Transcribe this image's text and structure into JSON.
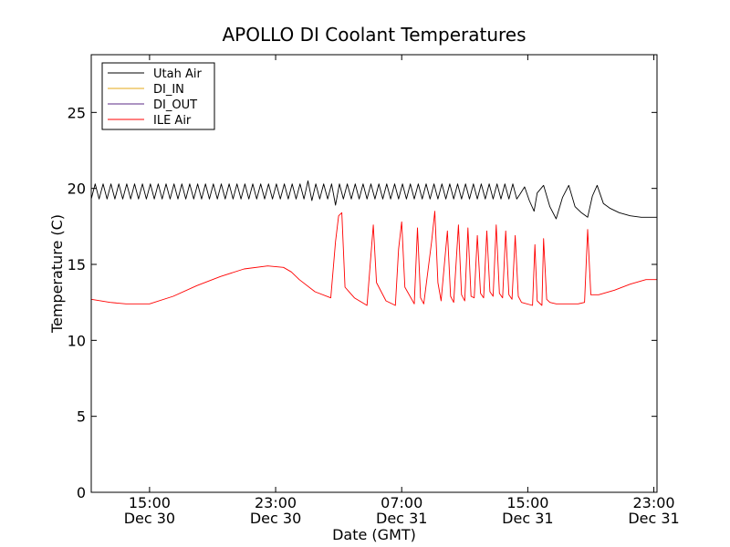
{
  "chart_data": {
    "type": "line",
    "title": "APOLLO DI Coolant Temperatures",
    "xlabel": "Date (GMT)",
    "ylabel": "Temperature (C)",
    "x_unit": "hours since Dec 30 00:00 GMT",
    "xlim": [
      11.3,
      47.2
    ],
    "ylim": [
      0,
      28.8
    ],
    "yticks": [
      0,
      5,
      10,
      15,
      20,
      25
    ],
    "xticks": [
      {
        "x": 15,
        "time": "15:00",
        "date": "Dec 30"
      },
      {
        "x": 23,
        "time": "23:00",
        "date": "Dec 30"
      },
      {
        "x": 31,
        "time": "07:00",
        "date": "Dec 31"
      },
      {
        "x": 39,
        "time": "15:00",
        "date": "Dec 31"
      },
      {
        "x": 47,
        "time": "23:00",
        "date": "Dec 31"
      }
    ],
    "legend_position": "top-left",
    "series": [
      {
        "name": "Utah Air",
        "color": "#000000",
        "x": [
          11.3,
          11.55,
          11.8,
          12.05,
          12.3,
          12.55,
          12.8,
          13.05,
          13.3,
          13.55,
          13.8,
          14.05,
          14.3,
          14.55,
          14.8,
          15.05,
          15.3,
          15.55,
          15.8,
          16.05,
          16.3,
          16.55,
          16.8,
          17.05,
          17.3,
          17.55,
          17.8,
          18.05,
          18.3,
          18.55,
          18.8,
          19.05,
          19.3,
          19.55,
          19.8,
          20.05,
          20.3,
          20.55,
          20.8,
          21.05,
          21.3,
          21.55,
          21.8,
          22.05,
          22.3,
          22.55,
          22.8,
          23.05,
          23.3,
          23.55,
          23.8,
          24.05,
          24.3,
          24.55,
          24.8,
          25.05,
          25.3,
          25.55,
          25.8,
          26.05,
          26.3,
          26.55,
          26.8,
          27.05,
          27.3,
          27.55,
          27.8,
          28.05,
          28.3,
          28.55,
          28.8,
          29.05,
          29.3,
          29.55,
          29.8,
          30.05,
          30.3,
          30.55,
          30.8,
          31.05,
          31.3,
          31.55,
          31.8,
          32.05,
          32.3,
          32.55,
          32.8,
          33.05,
          33.3,
          33.55,
          33.8,
          34.05,
          34.3,
          34.55,
          34.8,
          35.05,
          35.3,
          35.55,
          35.8,
          36.05,
          36.3,
          36.55,
          36.8,
          37.05,
          37.3,
          37.55,
          37.8,
          38.05,
          38.3,
          38.5,
          38.8,
          39.1,
          39.4,
          39.6,
          40.0,
          40.4,
          40.8,
          41.2,
          41.6,
          42.0,
          42.4,
          42.8,
          43.1,
          43.4,
          43.8,
          44.2,
          44.8,
          45.5,
          46.2,
          46.6,
          47.2
        ],
        "y": [
          19.3,
          20.3,
          19.3,
          20.3,
          19.3,
          20.3,
          19.3,
          20.3,
          19.3,
          20.3,
          19.3,
          20.3,
          19.3,
          20.3,
          19.3,
          20.3,
          19.3,
          20.3,
          19.3,
          20.3,
          19.3,
          20.3,
          19.3,
          20.3,
          19.3,
          20.3,
          19.3,
          20.3,
          19.3,
          20.3,
          19.3,
          20.3,
          19.3,
          20.3,
          19.3,
          20.3,
          19.3,
          20.3,
          19.3,
          20.3,
          19.3,
          20.3,
          19.3,
          20.3,
          19.3,
          20.3,
          19.3,
          20.3,
          19.3,
          20.3,
          19.3,
          20.3,
          19.3,
          20.3,
          19.3,
          20.5,
          19.2,
          20.3,
          19.3,
          20.3,
          19.3,
          20.3,
          18.9,
          20.3,
          19.3,
          20.3,
          19.3,
          20.3,
          19.3,
          20.3,
          19.3,
          20.3,
          19.3,
          20.3,
          19.3,
          20.3,
          19.3,
          20.3,
          19.3,
          20.3,
          19.3,
          20.3,
          19.3,
          20.3,
          19.3,
          20.3,
          19.3,
          20.3,
          19.3,
          20.3,
          19.3,
          20.3,
          19.3,
          20.3,
          19.3,
          20.3,
          19.3,
          20.3,
          19.3,
          20.3,
          19.3,
          20.3,
          19.3,
          20.3,
          19.3,
          20.3,
          19.3,
          20.3,
          19.3,
          19.6,
          20.1,
          19.2,
          18.5,
          19.7,
          20.2,
          18.8,
          18.0,
          19.4,
          20.2,
          18.8,
          18.4,
          18.1,
          19.5,
          20.2,
          19.0,
          18.7,
          18.4,
          18.2,
          18.1,
          18.1,
          18.1
        ]
      },
      {
        "name": "DI_IN",
        "color": "#e6a817",
        "x": [],
        "y": []
      },
      {
        "name": "DI_OUT",
        "color": "#5b2a86",
        "x": [],
        "y": []
      },
      {
        "name": "ILE Air",
        "color": "#ff0000",
        "x": [
          11.3,
          12.5,
          13.5,
          15.0,
          16.5,
          18.0,
          19.5,
          21.0,
          22.5,
          23.5,
          24.0,
          24.5,
          25.5,
          26.5,
          26.8,
          27.0,
          27.2,
          27.4,
          28.0,
          28.8,
          29.0,
          29.2,
          29.4,
          30.0,
          30.6,
          30.8,
          31.0,
          31.2,
          31.8,
          32.0,
          32.2,
          32.4,
          32.9,
          33.1,
          33.3,
          33.5,
          33.9,
          34.1,
          34.3,
          34.6,
          34.8,
          35.0,
          35.2,
          35.4,
          35.6,
          35.8,
          36.0,
          36.2,
          36.4,
          36.6,
          36.8,
          37.0,
          37.2,
          37.4,
          37.6,
          37.8,
          38.0,
          38.2,
          38.4,
          38.6,
          39.3,
          39.45,
          39.6,
          39.9,
          40.0,
          40.2,
          40.4,
          40.8,
          41.5,
          42.2,
          42.6,
          42.8,
          43.0,
          43.5,
          44.5,
          45.5,
          46.5,
          47.2
        ],
        "y": [
          12.7,
          12.5,
          12.4,
          12.4,
          12.9,
          13.6,
          14.2,
          14.7,
          14.9,
          14.8,
          14.5,
          14.0,
          13.2,
          12.8,
          16.5,
          18.2,
          18.4,
          13.5,
          12.8,
          12.3,
          15.0,
          17.6,
          13.8,
          12.6,
          12.3,
          16.0,
          17.8,
          13.5,
          12.4,
          17.4,
          12.8,
          12.4,
          16.5,
          18.5,
          13.8,
          12.6,
          17.2,
          12.9,
          12.5,
          17.6,
          13.0,
          12.6,
          17.4,
          12.9,
          12.8,
          16.9,
          13.1,
          12.8,
          17.2,
          13.2,
          12.9,
          17.6,
          13.1,
          12.8,
          17.2,
          13.0,
          12.7,
          16.9,
          12.9,
          12.5,
          12.3,
          16.3,
          12.6,
          12.3,
          16.7,
          12.7,
          12.5,
          12.4,
          12.4,
          12.4,
          12.5,
          17.3,
          13.0,
          13.0,
          13.3,
          13.7,
          14.0,
          14.0
        ]
      }
    ]
  }
}
